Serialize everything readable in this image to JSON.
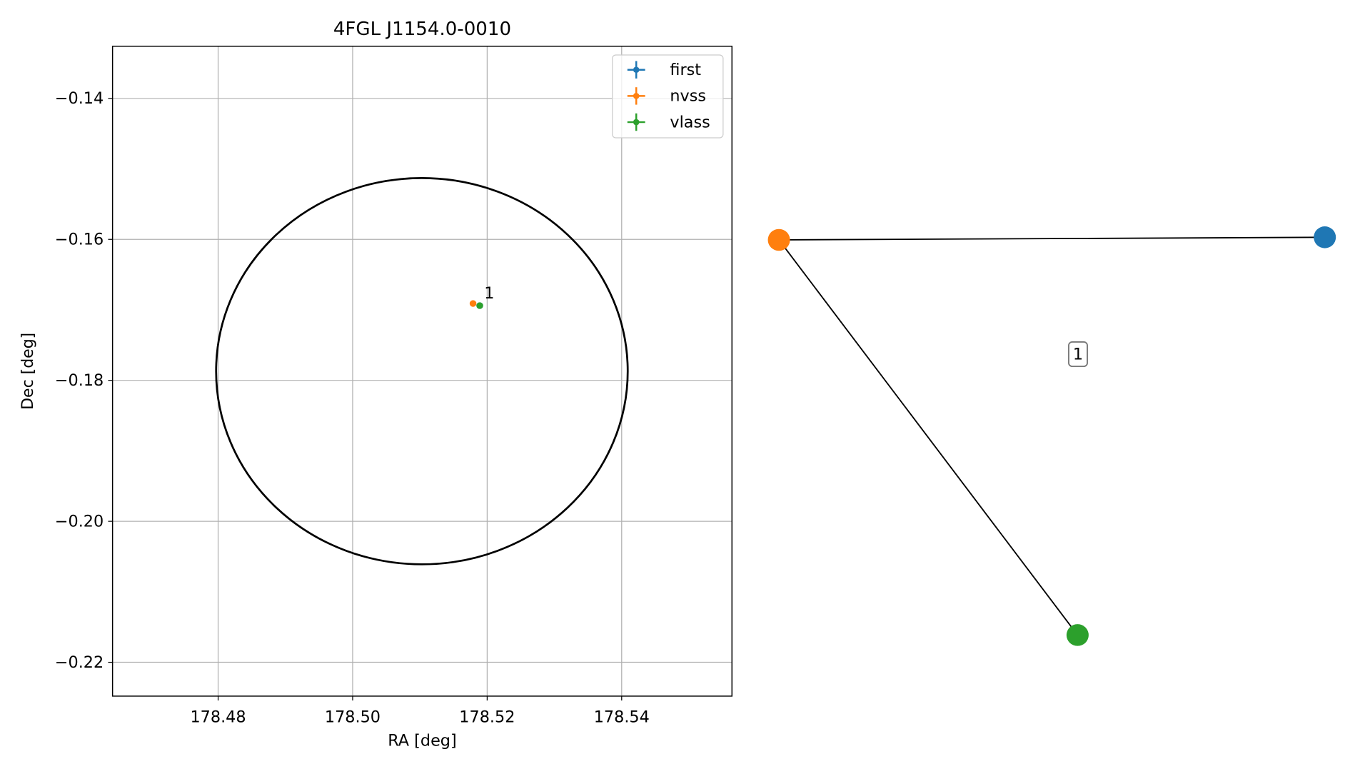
{
  "chart_data": [
    {
      "type": "scatter",
      "title": "4FGL J1154.0-0010",
      "xlabel": "RA [deg]",
      "ylabel": "Dec [deg]",
      "xlim": [
        178.4643,
        178.5564
      ],
      "ylim": [
        -0.2248,
        -0.1326
      ],
      "xticks": [
        178.48,
        178.5,
        178.52,
        178.54
      ],
      "xtick_labels": [
        "178.48",
        "178.50",
        "178.52",
        "178.54"
      ],
      "yticks": [
        {
          "value": -0.14,
          "label": "−0.14"
        },
        {
          "value": -0.16,
          "label": "−0.16"
        },
        {
          "value": -0.18,
          "label": "−0.18"
        },
        {
          "value": -0.2,
          "label": "−0.20"
        },
        {
          "value": -0.22,
          "label": "−0.22"
        }
      ],
      "grid": true,
      "legend": "upper right",
      "series": [
        {
          "name": "first",
          "color": "#1f77b4",
          "x": [
            178.5189
          ],
          "values": [
            -0.1694
          ]
        },
        {
          "name": "nvss",
          "color": "#ff7f0e",
          "x": [
            178.5179
          ],
          "values": [
            -0.1691
          ]
        },
        {
          "name": "vlass",
          "color": "#2ca02c",
          "x": [
            178.5189
          ],
          "values": [
            -0.1694
          ]
        }
      ],
      "ellipse": {
        "x": 178.5103,
        "y": -0.1787,
        "rx": 0.0306,
        "ry": 0.0274,
        "color": "#000000"
      },
      "annotations": [
        {
          "text": "1",
          "x": 178.5189,
          "y": -0.1694
        }
      ]
    },
    {
      "type": "network",
      "nodes": [
        {
          "color": "#1f77b4"
        },
        {
          "color": "#ff7f0e"
        },
        {
          "color": "#2ca02c"
        }
      ],
      "edges": [
        [
          1,
          0
        ],
        [
          1,
          2
        ]
      ],
      "edge_label": "1"
    }
  ]
}
